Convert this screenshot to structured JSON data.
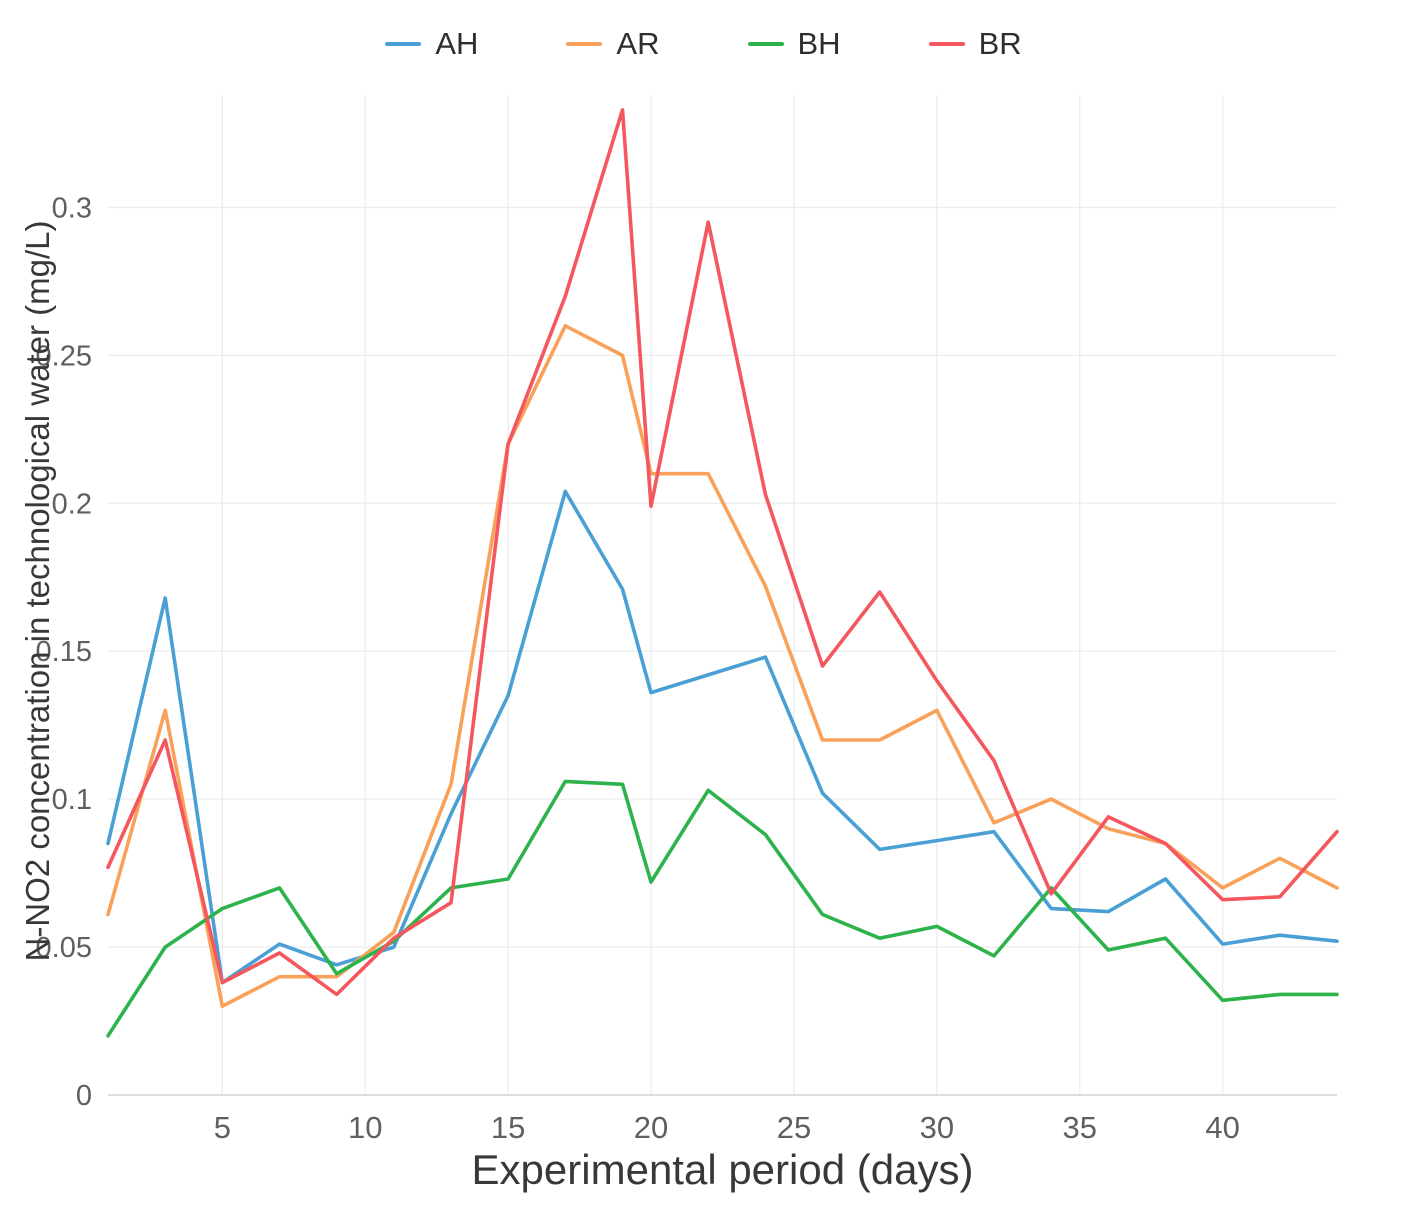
{
  "chart_data": {
    "type": "line",
    "title": "",
    "xlabel": "Experimental period (days)",
    "ylabel": "N-NO2 concentration in technological water (mg/L)",
    "x": [
      1,
      3,
      5,
      7,
      9,
      11,
      13,
      15,
      17,
      19,
      20,
      22,
      24,
      26,
      28,
      30,
      32,
      34,
      36,
      38,
      40,
      42,
      44
    ],
    "series": [
      {
        "name": "AH",
        "color": "#4aa0d5",
        "values": [
          0.085,
          0.168,
          0.038,
          0.051,
          0.044,
          0.05,
          0.095,
          0.135,
          0.204,
          0.171,
          0.136,
          0.142,
          0.148,
          0.102,
          0.083,
          0.086,
          0.089,
          0.063,
          0.062,
          0.073,
          0.051,
          0.054,
          0.052
        ]
      },
      {
        "name": "AR",
        "color": "#f9a158",
        "values": [
          0.061,
          0.13,
          0.03,
          0.04,
          0.04,
          0.055,
          0.105,
          0.22,
          0.26,
          0.25,
          0.21,
          0.21,
          0.172,
          0.12,
          0.12,
          0.13,
          0.092,
          0.1,
          0.09,
          0.085,
          0.07,
          0.08,
          0.07
        ]
      },
      {
        "name": "BH",
        "color": "#2eb34c",
        "values": [
          0.02,
          0.05,
          0.063,
          0.07,
          0.041,
          0.052,
          0.07,
          0.073,
          0.106,
          0.105,
          0.072,
          0.103,
          0.088,
          0.061,
          0.053,
          0.057,
          0.047,
          0.07,
          0.049,
          0.053,
          0.032,
          0.034,
          0.034
        ]
      },
      {
        "name": "BR",
        "color": "#f4575d",
        "values": [
          0.077,
          0.12,
          0.038,
          0.048,
          0.034,
          0.053,
          0.065,
          0.22,
          0.27,
          0.333,
          0.199,
          0.295,
          0.203,
          0.145,
          0.17,
          0.14,
          0.113,
          0.068,
          0.094,
          0.085,
          0.066,
          0.067,
          0.089
        ]
      }
    ],
    "xlim": [
      1,
      44
    ],
    "ylim": [
      0,
      0.338
    ],
    "xticks": [
      {
        "label": "5",
        "value": 5
      },
      {
        "label": "10",
        "value": 10
      },
      {
        "label": "15",
        "value": 15
      },
      {
        "label": "20",
        "value": 20
      },
      {
        "label": "25",
        "value": 25
      },
      {
        "label": "30",
        "value": 30
      },
      {
        "label": "35",
        "value": 35
      },
      {
        "label": "40",
        "value": 40
      }
    ],
    "yticks": [
      {
        "label": "0",
        "value": 0
      },
      {
        "label": "0.05",
        "value": 0.05
      },
      {
        "label": "0.1",
        "value": 0.1
      },
      {
        "label": "0.15",
        "value": 0.15
      },
      {
        "label": "0.2",
        "value": 0.2
      },
      {
        "label": "0.25",
        "value": 0.25
      },
      {
        "label": "0.3",
        "value": 0.3
      }
    ],
    "grid": true,
    "legend_position": "top",
    "colors": {
      "grid": "#ededed",
      "axis_line": "#d4d4d4",
      "tick_label": "#5f5f5f",
      "axis_title": "#383838"
    }
  }
}
